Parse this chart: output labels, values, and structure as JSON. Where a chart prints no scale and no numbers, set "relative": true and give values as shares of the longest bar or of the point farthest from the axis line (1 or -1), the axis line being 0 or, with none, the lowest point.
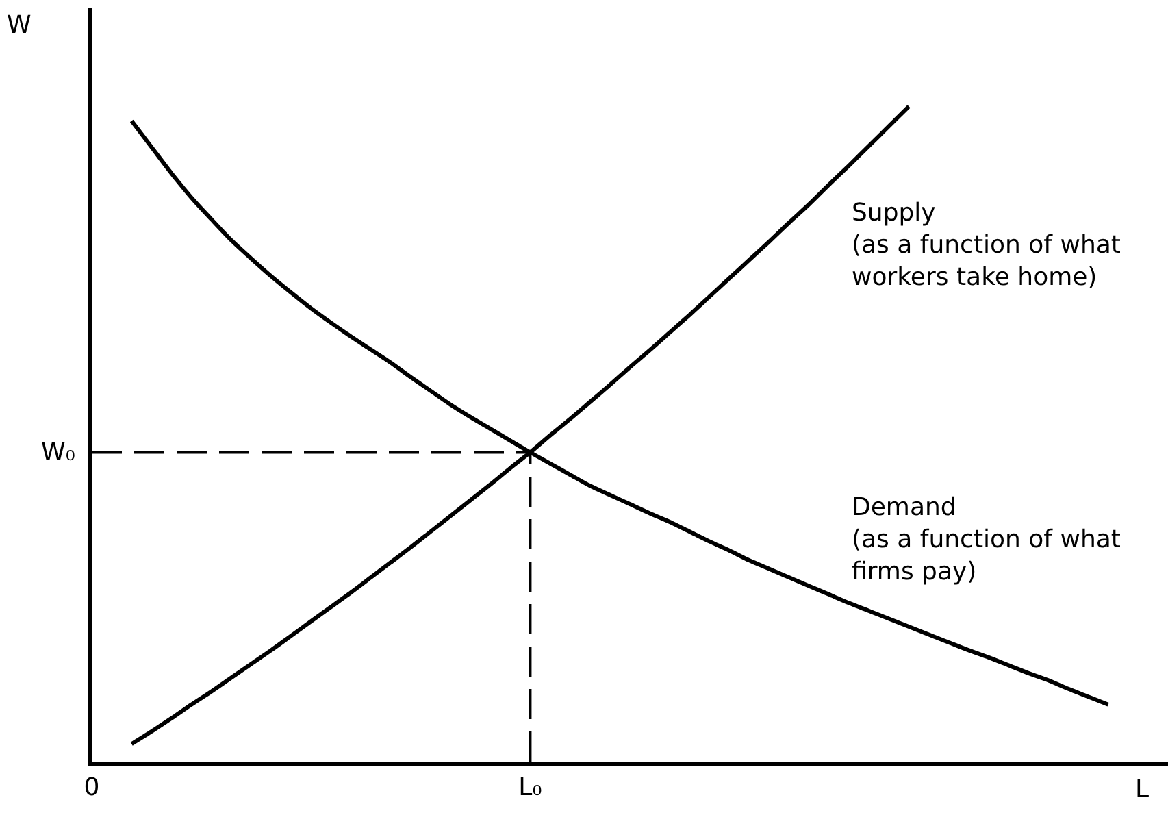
{
  "chart_data": {
    "type": "line",
    "relative": true,
    "xlabel": "L",
    "ylabel": "W",
    "categories": [
      "0",
      null,
      null,
      null,
      null,
      null,
      null,
      null,
      null,
      null,
      null,
      null,
      null,
      null,
      null,
      null,
      null,
      null,
      null,
      null,
      null,
      null,
      "L₀",
      null,
      null,
      null,
      null,
      null,
      null,
      null,
      null,
      null,
      null,
      null,
      null,
      null,
      null,
      null,
      null,
      null,
      null,
      null,
      null,
      null,
      null,
      null,
      null,
      null,
      null,
      null,
      null,
      null,
      null,
      null,
      null
    ],
    "series": [
      {
        "name": "Supply\n(as a function of what\nworkers take home)",
        "color": "#000000",
        "values": [
          null,
          null,
          0.027,
          0.046,
          0.066,
          0.087,
          0.107,
          0.128,
          0.149,
          0.17,
          0.192,
          0.214,
          0.236,
          0.258,
          0.281,
          0.304,
          0.327,
          0.351,
          0.375,
          0.399,
          0.423,
          0.448,
          0.472,
          0.498,
          0.523,
          0.549,
          0.575,
          0.602,
          0.628,
          0.655,
          0.682,
          0.71,
          0.738,
          0.766,
          0.794,
          0.823,
          0.851,
          0.881,
          0.91,
          0.94,
          0.97,
          1.0,
          null,
          null,
          null,
          null,
          null,
          null,
          null,
          null,
          null,
          null,
          null,
          null,
          null
        ]
      },
      {
        "name": "Demand\n(as a function of what\nfirms pay)",
        "color": "#000000",
        "values": [
          null,
          null,
          0.978,
          0.938,
          0.898,
          0.861,
          0.828,
          0.796,
          0.768,
          0.741,
          0.716,
          0.692,
          0.67,
          0.649,
          0.629,
          0.609,
          0.587,
          0.566,
          0.545,
          0.526,
          0.508,
          0.49,
          0.472,
          0.455,
          0.438,
          0.421,
          0.407,
          0.393,
          0.379,
          0.366,
          0.351,
          0.336,
          0.322,
          0.307,
          0.294,
          0.281,
          0.268,
          0.255,
          0.242,
          0.23,
          0.218,
          0.206,
          0.194,
          0.182,
          0.17,
          0.159,
          0.147,
          0.135,
          0.124,
          0.111,
          0.099,
          0.087,
          null,
          null,
          null
        ]
      }
    ],
    "ref_lines": [
      {
        "axis": "y",
        "value": 0.472,
        "label": "W₀",
        "line_style": "dashed",
        "color": "#000000"
      },
      {
        "axis": "x",
        "value": "L₀",
        "line_style": "dashed",
        "color": "#000000"
      }
    ]
  }
}
